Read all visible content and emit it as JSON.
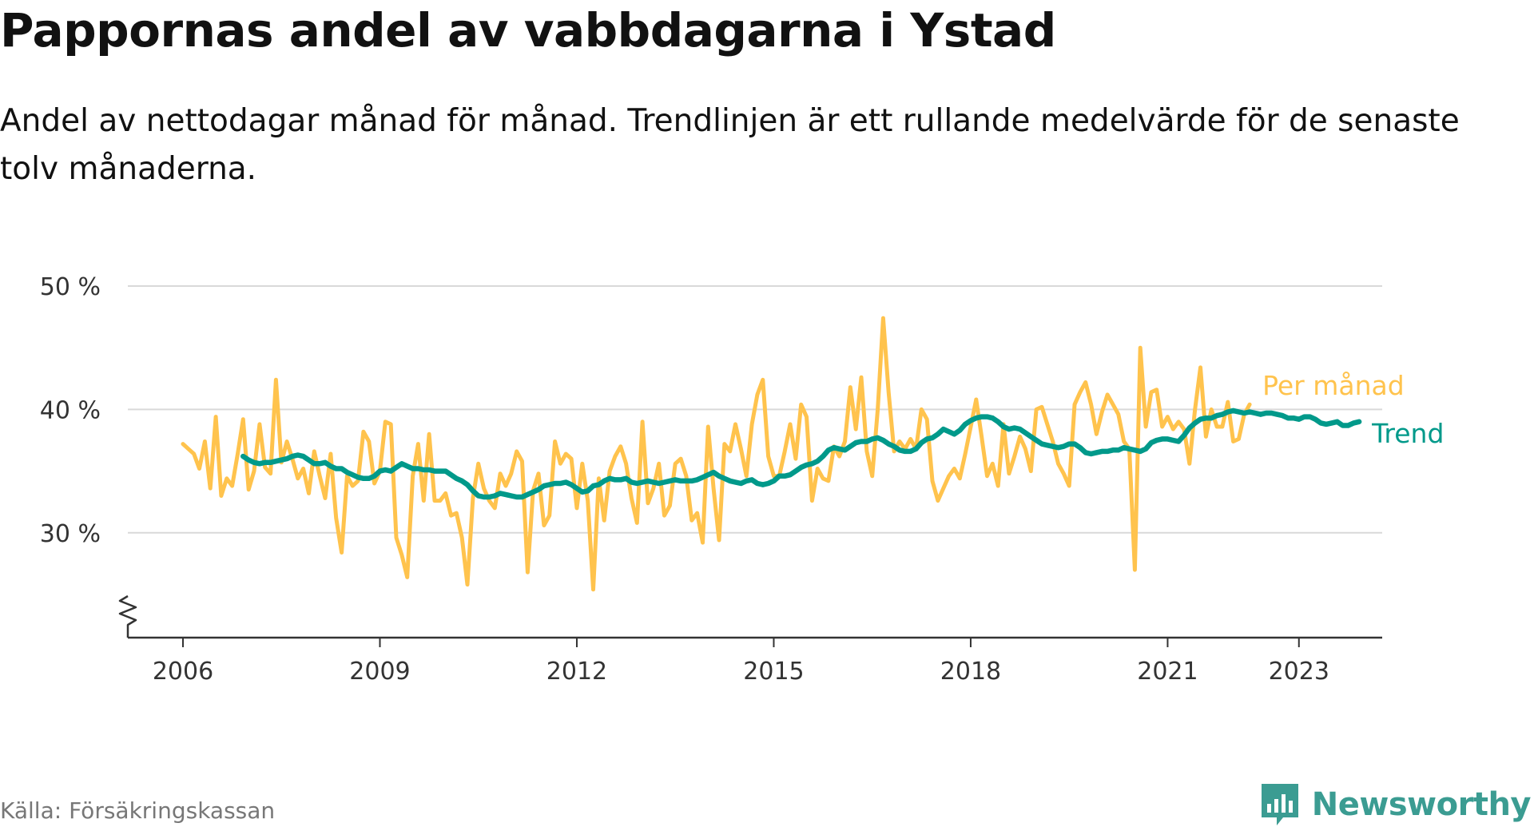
{
  "header": {
    "title": "Pappornas andel av vabbdagarna i Ystad",
    "subtitle": "Andel av nettodagar månad för månad. Trendlinjen är ett rullande medelvärde för de senaste tolv månaderna."
  },
  "footer": {
    "source": "Källa: Försäkringskassan",
    "brand": "Newsworthy"
  },
  "colors": {
    "monthly": "#ffc34d",
    "trend": "#00998a",
    "grid": "#d9d9d9",
    "axis": "#333333",
    "brand": "#3b9c92"
  },
  "chart_data": {
    "type": "line",
    "title": "Pappornas andel av vabbdagarna i Ystad",
    "subtitle": "Andel av nettodagar månad för månad. Trendlinjen är ett rullande medelvärde för de senaste tolv månaderna.",
    "x_start": "2006-01",
    "x_end": "2023-06",
    "x_ticks": [
      {
        "year": 2006,
        "label": "2006"
      },
      {
        "year": 2009,
        "label": "2009"
      },
      {
        "year": 2012,
        "label": "2012"
      },
      {
        "year": 2015,
        "label": "2015"
      },
      {
        "year": 2018,
        "label": "2018"
      },
      {
        "year": 2021,
        "label": "2021"
      },
      {
        "year": 2023,
        "label": "2023"
      }
    ],
    "y_ticks": [
      {
        "value": 30,
        "label": "30 %"
      },
      {
        "value": 40,
        "label": "40 %"
      },
      {
        "value": 50,
        "label": "50 %"
      }
    ],
    "ylim": [
      21.5,
      50
    ],
    "y_axis_break": true,
    "grid": true,
    "legend": "inline labels at line ends",
    "series": [
      {
        "name": "Per månad",
        "color_key": "monthly",
        "start": "2006-01",
        "values": [
          37.2,
          36.8,
          36.4,
          35.2,
          37.4,
          33.6,
          39.4,
          33.0,
          34.4,
          33.8,
          36.4,
          39.2,
          33.5,
          35.0,
          38.8,
          35.3,
          34.8,
          42.4,
          35.7,
          37.4,
          36.0,
          34.4,
          35.2,
          33.2,
          36.6,
          34.6,
          32.8,
          36.4,
          31.2,
          28.4,
          34.6,
          33.8,
          34.2,
          38.2,
          37.4,
          34.0,
          35.0,
          39.0,
          38.8,
          29.6,
          28.2,
          26.4,
          34.6,
          37.2,
          32.6,
          38.0,
          32.6,
          32.6,
          33.2,
          31.4,
          31.6,
          29.6,
          25.8,
          32.8,
          35.6,
          33.6,
          32.6,
          32.0,
          34.8,
          33.8,
          34.8,
          36.6,
          35.8,
          26.8,
          33.4,
          34.8,
          30.6,
          31.4,
          37.4,
          35.6,
          36.4,
          36.0,
          32.0,
          35.6,
          32.6,
          25.4,
          34.4,
          31.0,
          35.0,
          36.2,
          37.0,
          35.6,
          32.8,
          30.8,
          39.0,
          32.4,
          33.6,
          35.6,
          31.4,
          32.2,
          35.6,
          36.0,
          34.6,
          31.0,
          31.6,
          29.2,
          38.6,
          33.6,
          29.4,
          37.2,
          36.6,
          38.8,
          36.8,
          34.6,
          38.8,
          41.2,
          42.4,
          36.2,
          34.6,
          34.6,
          36.6,
          38.8,
          36.0,
          40.4,
          39.4,
          32.6,
          35.2,
          34.4,
          34.2,
          37.0,
          36.2,
          37.4,
          41.8,
          38.4,
          42.6,
          36.6,
          34.6,
          40.0,
          47.4,
          41.4,
          36.6,
          37.4,
          36.8,
          37.6,
          36.8,
          40.0,
          39.2,
          34.2,
          32.6,
          33.6,
          34.6,
          35.2,
          34.4,
          36.4,
          38.6,
          40.8,
          37.8,
          34.6,
          35.6,
          33.8,
          38.8,
          34.8,
          36.2,
          37.8,
          36.8,
          35.0,
          40.0,
          40.2,
          38.8,
          37.4,
          35.6,
          34.8,
          33.8,
          40.4,
          41.4,
          42.2,
          40.4,
          38.0,
          39.8,
          41.2,
          40.4,
          39.6,
          37.4,
          36.8,
          27.0,
          45.0,
          38.6,
          41.4,
          41.6,
          38.6,
          39.4,
          38.4,
          39.0,
          38.4,
          35.6,
          40.0,
          43.4,
          37.8,
          40.0,
          38.6,
          38.6,
          40.6,
          37.4,
          37.6,
          39.6,
          40.4
        ]
      },
      {
        "name": "Trend",
        "color_key": "trend",
        "start": "2006-12",
        "values": [
          36.2,
          35.9,
          35.7,
          35.6,
          35.7,
          35.7,
          35.8,
          35.9,
          36.0,
          36.2,
          36.3,
          36.2,
          35.9,
          35.6,
          35.6,
          35.7,
          35.4,
          35.2,
          35.2,
          34.9,
          34.7,
          34.5,
          34.4,
          34.4,
          34.6,
          35.0,
          35.1,
          35.0,
          35.3,
          35.6,
          35.4,
          35.2,
          35.2,
          35.1,
          35.1,
          35.0,
          35.0,
          35.0,
          34.7,
          34.4,
          34.2,
          33.9,
          33.4,
          33.0,
          32.9,
          32.9,
          33.0,
          33.2,
          33.1,
          33.0,
          32.9,
          32.9,
          33.1,
          33.3,
          33.5,
          33.8,
          33.9,
          34.0,
          34.0,
          34.1,
          33.9,
          33.6,
          33.3,
          33.4,
          33.8,
          33.9,
          34.2,
          34.4,
          34.3,
          34.3,
          34.4,
          34.1,
          34.0,
          34.1,
          34.2,
          34.1,
          34.0,
          34.1,
          34.2,
          34.3,
          34.2,
          34.2,
          34.2,
          34.3,
          34.5,
          34.7,
          34.9,
          34.6,
          34.4,
          34.2,
          34.1,
          34.0,
          34.2,
          34.3,
          34.0,
          33.9,
          34.0,
          34.2,
          34.6,
          34.6,
          34.7,
          35.0,
          35.3,
          35.5,
          35.6,
          35.8,
          36.2,
          36.7,
          36.9,
          36.8,
          36.7,
          37.0,
          37.3,
          37.4,
          37.4,
          37.6,
          37.7,
          37.5,
          37.2,
          37.0,
          36.7,
          36.6,
          36.6,
          36.8,
          37.3,
          37.6,
          37.7,
          38.0,
          38.4,
          38.2,
          38.0,
          38.3,
          38.8,
          39.1,
          39.3,
          39.4,
          39.4,
          39.3,
          39.0,
          38.6,
          38.4,
          38.5,
          38.4,
          38.1,
          37.8,
          37.5,
          37.2,
          37.1,
          37.0,
          36.9,
          37.0,
          37.2,
          37.2,
          36.9,
          36.5,
          36.4,
          36.5,
          36.6,
          36.6,
          36.7,
          36.7,
          36.9,
          36.8,
          36.7,
          36.6,
          36.8,
          37.3,
          37.5,
          37.6,
          37.6,
          37.5,
          37.4,
          37.9,
          38.5,
          38.9,
          39.2,
          39.3,
          39.3,
          39.5,
          39.6,
          39.8,
          39.9,
          39.8,
          39.7,
          39.8,
          39.7,
          39.6,
          39.7,
          39.7,
          39.6,
          39.5,
          39.3,
          39.3,
          39.2,
          39.4,
          39.4,
          39.2,
          38.9,
          38.8,
          38.9,
          39.0,
          38.7,
          38.7,
          38.9,
          39.0
        ]
      }
    ]
  }
}
